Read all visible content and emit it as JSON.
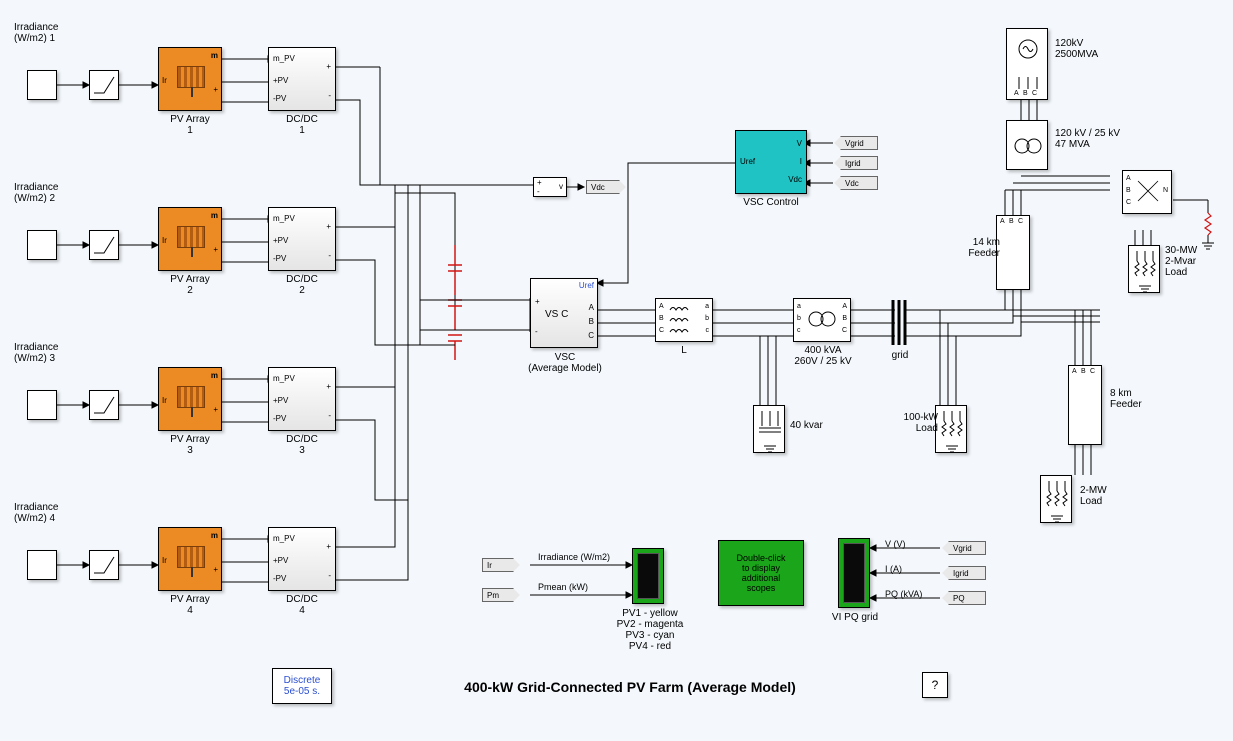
{
  "title": "400-kW Grid-Connected PV Farm (Average Model)",
  "colors": {
    "canvas_bg": "#f4f8fc",
    "pv_fill": "#ec8a24",
    "vsc_ctrl_fill": "#1fc3c3",
    "scope_fill": "#1aa51a",
    "wire": "#000000",
    "cap_red": "#d11515",
    "blue_text": "#2a4fd1",
    "tag_fill": "#e9e9e9"
  },
  "discrete_block": {
    "line1": "Discrete",
    "line2": "5e-05 s."
  },
  "help_label": "?",
  "pv_chain": [
    {
      "irr_label": "Irradiance\n(W/m2) 1",
      "pv_label": "PV Array\n1",
      "dcdc_label": "DC/DC\n1"
    },
    {
      "irr_label": "Irradiance\n(W/m2) 2",
      "pv_label": "PV Array\n2",
      "dcdc_label": "DC/DC\n2"
    },
    {
      "irr_label": "Irradiance\n(W/m2) 3",
      "pv_label": "PV Array\n3",
      "dcdc_label": "DC/DC\n3"
    },
    {
      "irr_label": "Irradiance\n(W/m2) 4",
      "pv_label": "PV Array\n4",
      "dcdc_label": "DC/DC\n4"
    }
  ],
  "pv_ports": {
    "m": "m",
    "ir": "Ir",
    "plus": "+",
    "m_pv": "m_PV",
    "p_pv": "+PV",
    "n_pv": "-PV",
    "dplus": "+",
    "dminus": "-"
  },
  "vdc_tag": "Vdc",
  "vsc_control": {
    "title": "VSC Control",
    "ports_left": [
      "V",
      "I",
      "Vdc"
    ],
    "port_out": "Uref",
    "tags": [
      "Vgrid",
      "Igrid",
      "Vdc"
    ]
  },
  "vsc_avg": {
    "title": "VSC\n(Average Model)",
    "text": "VS C",
    "uref": "Uref",
    "abc_left": [
      "A",
      "B",
      "C"
    ],
    "plus": "+",
    "minus": "-"
  },
  "L_block": {
    "title": "L",
    "left": [
      "A",
      "B",
      "C"
    ],
    "right": [
      "a",
      "b",
      "c"
    ]
  },
  "xfmr400": {
    "title": "400 kVA\n260V / 25 kV",
    "left": [
      "a",
      "b",
      "c"
    ],
    "right": [
      "A",
      "B",
      "C"
    ]
  },
  "kvar40": "40 kvar",
  "grid_label": "grid",
  "load100": "100-kW\nLoad",
  "feeder14": "14 km\nFeeder",
  "feeder8": "8 km\nFeeder",
  "load2mw": "2-MW\nLoad",
  "src120": "120kV\n2500MVA",
  "xfmr120": "120 kV / 25 kV\n47 MVA",
  "load30": "30-MW\n2-Mvar\nLoad",
  "abc": [
    "A",
    "B",
    "C"
  ],
  "scopes": {
    "left_tags": [
      "Ir",
      "Pm"
    ],
    "left_labels": [
      "Irradiance (W/m2)",
      "Pmean (kW)"
    ],
    "left_legend": "PV1 - yellow\nPV2 - magenta\nPV3 - cyan\nPV4 - red",
    "dbl_click": "Double-click\nto display\nadditional\nscopes",
    "right_title": "VI PQ grid",
    "right_labels": [
      "V (V)",
      "I (A)",
      "PQ (kVA)"
    ],
    "right_tags": [
      "Vgrid",
      "Igrid",
      "PQ"
    ]
  }
}
